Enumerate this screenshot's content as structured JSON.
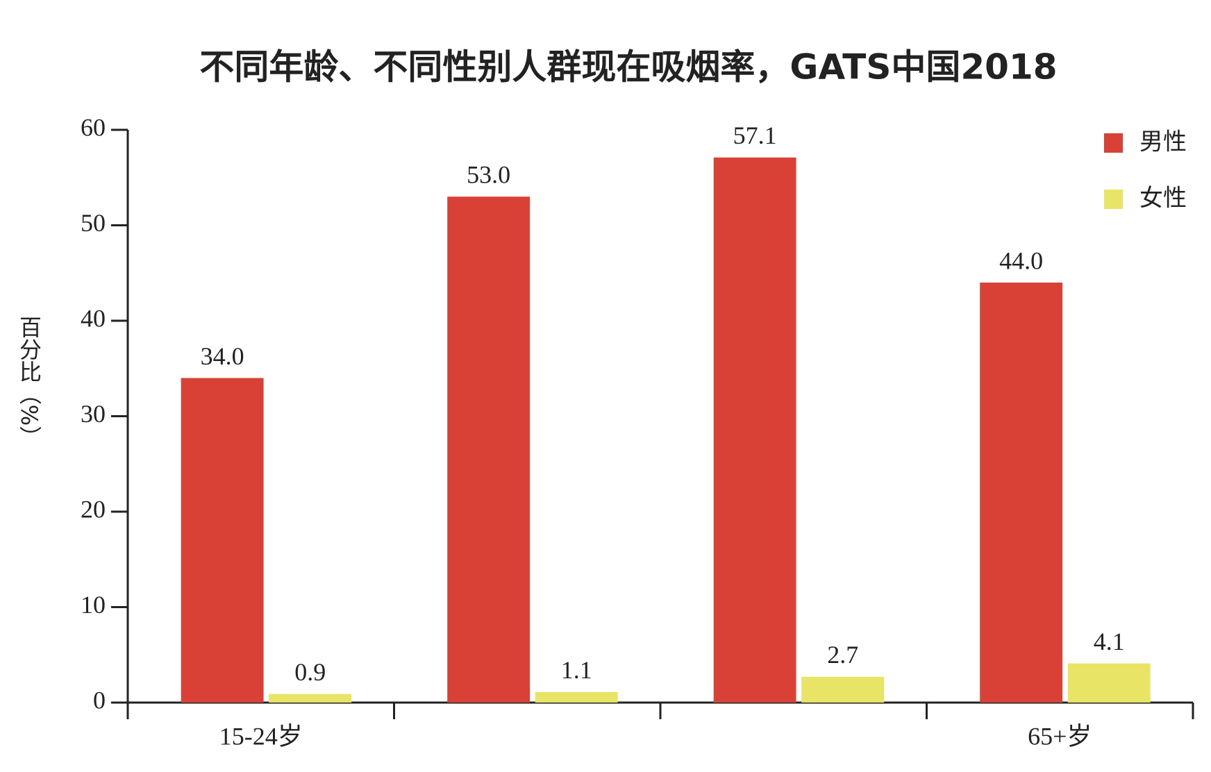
{
  "chart_data": {
    "type": "bar",
    "title": "不同年龄、不同性别人群现在吸烟率，GATS中国2018",
    "ylabel": "百分比（%）",
    "categories": [
      "15-24岁",
      null,
      null,
      "65+岁"
    ],
    "series": [
      {
        "name": "男性",
        "color": "#da4136",
        "values": [
          34.0,
          53.0,
          57.1,
          44.0
        ],
        "value_labels": [
          "34.0",
          "53.0",
          "57.1",
          "44.0"
        ]
      },
      {
        "name": "女性",
        "color": "#e8e466",
        "values": [
          0.9,
          1.1,
          2.7,
          4.1
        ]
      }
    ],
    "ylim": [
      0,
      60
    ],
    "yticks": [
      0,
      10,
      20,
      30,
      40,
      50,
      60
    ],
    "grid": false,
    "legend": "upper right"
  }
}
